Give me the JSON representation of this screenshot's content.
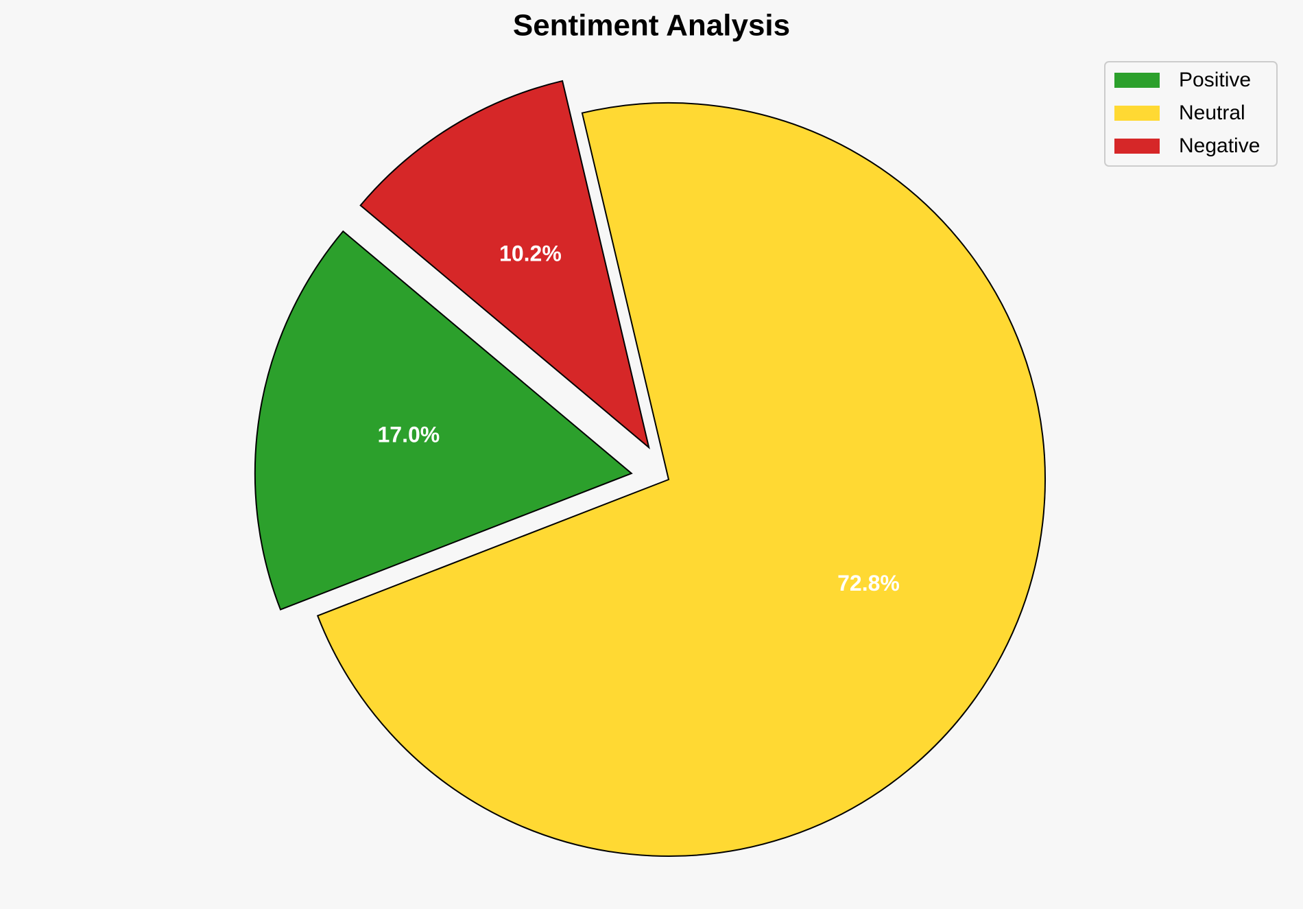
{
  "chart_data": {
    "type": "pie",
    "title": "Sentiment Analysis",
    "categories": [
      "Positive",
      "Neutral",
      "Negative"
    ],
    "values": [
      17.0,
      72.8,
      10.2
    ],
    "value_labels": [
      "17.0%",
      "72.8%",
      "10.2%"
    ],
    "colors": [
      "#2ca02c",
      "#ffd933",
      "#d62728"
    ],
    "explode": [
      0.1,
      0,
      0.1
    ],
    "startangle": 140,
    "legend": "upper right"
  }
}
